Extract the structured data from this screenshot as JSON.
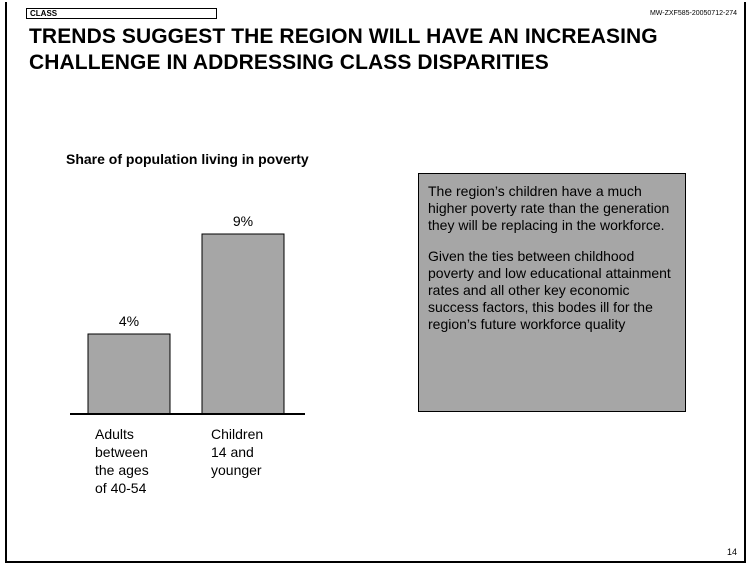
{
  "header": {
    "section_tag": "CLASS",
    "doc_code": "MW-ZXF585-20050712-274",
    "title_line1": "TRENDS SUGGEST THE REGION WILL HAVE AN INCREASING",
    "title_line2": "CHALLENGE IN ADDRESSING CLASS DISPARITIES"
  },
  "chart_data": {
    "type": "bar",
    "title": "Share of population living in poverty",
    "categories": [
      "Adults between the ages of 40-54",
      "Children 14 and younger"
    ],
    "category_lines": [
      [
        "Adults",
        "between",
        "the ages",
        "of 40-54"
      ],
      [
        "Children",
        "14 and",
        "younger"
      ]
    ],
    "values": [
      4,
      9
    ],
    "value_labels": [
      "4%",
      "9%"
    ],
    "ylim": [
      0,
      10
    ],
    "grid": false,
    "bar_color": "#a6a6a6"
  },
  "callout": {
    "paragraph1": "The region’s children have a much higher poverty rate than the generation they will be replacing in the workforce.",
    "paragraph2": "Given the ties between childhood poverty and low educational attainment rates and all other key economic success factors, this bodes ill for the region’s future workforce quality"
  },
  "footer": {
    "page_number": "14"
  }
}
